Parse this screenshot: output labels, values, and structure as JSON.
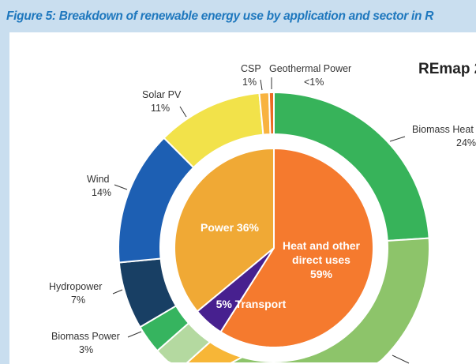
{
  "chart_data": {
    "type": "pie",
    "title": "Figure 5: Breakdown of renewable energy use by application and sector in R",
    "heading": "REmap 2",
    "inner": [
      {
        "name": "Heat and other direct uses",
        "label_lines": [
          "Heat and other",
          "direct uses",
          "59%"
        ],
        "value": 59,
        "color": "#f57a2e"
      },
      {
        "name": "Transport",
        "label_lines": [
          "5% Transport"
        ],
        "value": 5,
        "color": "#47208f"
      },
      {
        "name": "Power",
        "label_lines": [
          "Power 36%"
        ],
        "value": 36,
        "color": "#f0a935"
      }
    ],
    "outer": [
      {
        "name": "Biomass Heat",
        "pct": "24%",
        "value": 24,
        "color": "#37b35a"
      },
      {
        "name": "",
        "pct": "",
        "value": 30.5,
        "color": "#8dc46a"
      },
      {
        "name": "",
        "pct": "",
        "value": 5,
        "color": "#f7b637"
      },
      {
        "name": "",
        "pct": "",
        "value": 4,
        "color": "#b4d9a0"
      },
      {
        "name": "Biomass Power",
        "pct": "3%",
        "value": 3,
        "color": "#36b45f"
      },
      {
        "name": "Hydropower",
        "pct": "7%",
        "value": 7,
        "color": "#183f64"
      },
      {
        "name": "Wind",
        "pct": "14%",
        "value": 14,
        "color": "#1d5fb3"
      },
      {
        "name": "Solar PV",
        "pct": "11%",
        "value": 11,
        "color": "#f2e24a"
      },
      {
        "name": "CSP",
        "pct": "1%",
        "value": 1,
        "color": "#f8b340"
      },
      {
        "name": "Geothermal Power",
        "pct": "<1%",
        "value": 0.5,
        "color": "#ec6b22"
      }
    ]
  }
}
